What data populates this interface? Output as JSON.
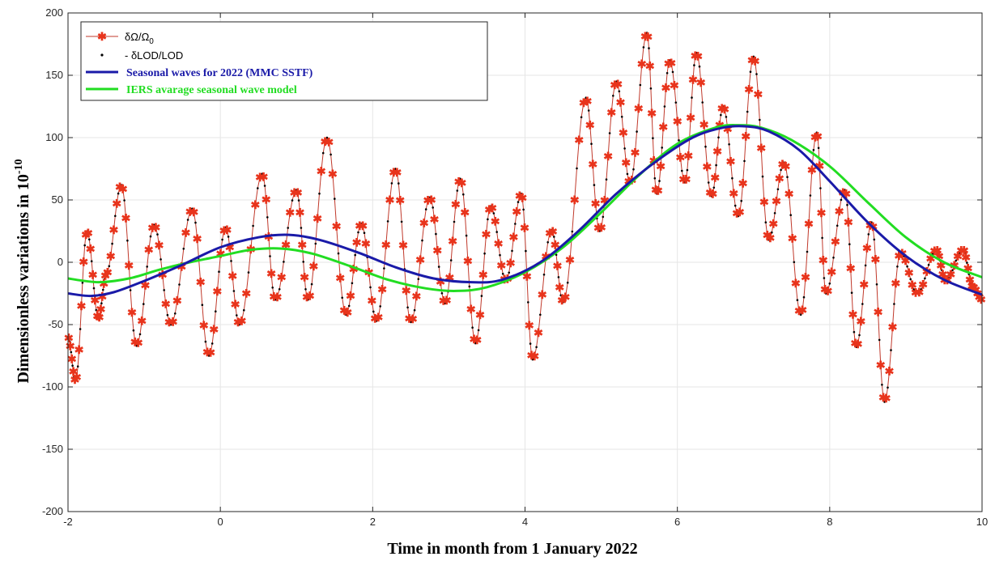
{
  "chart_data": {
    "type": "line",
    "xlabel": "Time in month from 1 January 2022",
    "ylabel_main": "Dimensionless variations in 10",
    "ylabel_exp": "-10",
    "xlim": [
      -2,
      10
    ],
    "ylim": [
      -200,
      200
    ],
    "x_ticks": [
      -2,
      0,
      2,
      4,
      6,
      8,
      10
    ],
    "y_ticks": [
      -200,
      -150,
      -100,
      -50,
      0,
      50,
      100,
      150,
      200
    ],
    "grid": true,
    "legend_position": "top-left",
    "legend": [
      {
        "label_main": "δΩ/Ω",
        "label_sub": "0",
        "style": "red-line-star"
      },
      {
        "label_main": "- δLOD/LOD",
        "label_sub": "",
        "style": "black-dots"
      },
      {
        "label_main": "Seasonal waves for 2022 (MMC SSTF)",
        "label_sub": "",
        "style": "blue-line"
      },
      {
        "label_main": "IERS avarage seasonal wave model",
        "label_sub": "",
        "style": "green-line"
      }
    ],
    "colors": {
      "delta_omega": "#c0392b",
      "delta_omega_marker": "#e8341c",
      "lod_dots": "#000000",
      "mmc_sstf": "#1a1aa8",
      "iers": "#22dd22"
    },
    "seasonal_mmc_sstf": {
      "x": [
        -2,
        -1.7,
        -1.4,
        -1,
        -0.5,
        0,
        0.5,
        0.9,
        1.3,
        1.8,
        2.3,
        2.8,
        3.3,
        3.7,
        4.2,
        4.7,
        5.2,
        5.7,
        6.2,
        6.6,
        6.9,
        7.2,
        7.6,
        8.0,
        8.5,
        9.0,
        9.5,
        10
      ],
      "y": [
        -25,
        -27,
        -24,
        -15,
        -2,
        12,
        20,
        22,
        18,
        8,
        -4,
        -13,
        -16,
        -14,
        0,
        25,
        55,
        80,
        100,
        108,
        109,
        105,
        90,
        65,
        32,
        5,
        -14,
        -26
      ]
    },
    "iers_model": {
      "x": [
        -2,
        -1.6,
        -1.2,
        -0.8,
        -0.4,
        0,
        0.4,
        0.8,
        1.2,
        1.7,
        2.2,
        2.7,
        3.1,
        3.5,
        4.0,
        4.5,
        5.0,
        5.5,
        6.0,
        6.5,
        6.8,
        7.1,
        7.5,
        8.0,
        8.5,
        9.0,
        9.5,
        10
      ],
      "y": [
        -13,
        -16,
        -13,
        -6,
        0,
        5,
        10,
        11,
        7,
        -3,
        -14,
        -21,
        -23,
        -20,
        -8,
        12,
        40,
        70,
        95,
        108,
        110,
        108,
        98,
        77,
        48,
        20,
        0,
        -12
      ]
    },
    "delta_omega_peaks": {
      "x": [
        -2.0,
        -1.9,
        -1.75,
        -1.6,
        -1.5,
        -1.3,
        -1.1,
        -0.87,
        -0.65,
        -0.37,
        -0.15,
        0.07,
        0.25,
        0.55,
        0.72,
        1.0,
        1.15,
        1.4,
        1.65,
        1.85,
        2.05,
        2.3,
        2.5,
        2.75,
        2.95,
        3.15,
        3.35,
        3.55,
        3.75,
        3.95,
        4.1,
        4.35,
        4.5,
        4.8,
        4.98,
        5.2,
        5.38,
        5.6,
        5.73,
        5.9,
        6.1,
        6.25,
        6.45,
        6.6,
        6.8,
        7.0,
        7.2,
        7.4,
        7.62,
        7.83,
        7.95,
        8.2,
        8.35,
        8.55,
        8.72,
        8.93,
        9.15,
        9.4,
        9.52,
        9.75,
        9.88,
        10.0
      ],
      "y": [
        -60,
        -95,
        25,
        -45,
        -10,
        62,
        -67,
        30,
        -50,
        43,
        -75,
        28,
        -50,
        71,
        -30,
        58,
        -30,
        100,
        -42,
        31,
        -47,
        75,
        -48,
        52,
        -33,
        67,
        -65,
        45,
        -15,
        55,
        -78,
        26,
        -32,
        132,
        25,
        145,
        63,
        184,
        55,
        162,
        64,
        168,
        53,
        125,
        37,
        165,
        18,
        80,
        -42,
        104,
        -25,
        58,
        -68,
        32,
        -112,
        8,
        -25,
        10,
        -15,
        10,
        -20,
        -30
      ]
    }
  }
}
